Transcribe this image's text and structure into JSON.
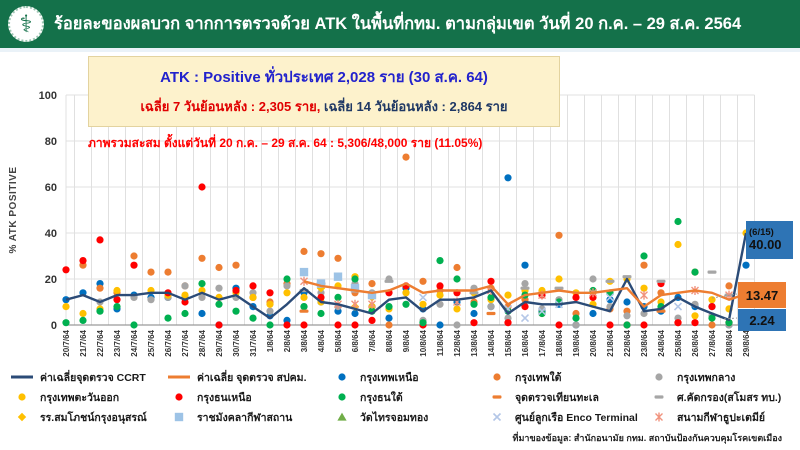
{
  "header": {
    "title": "ร้อยละของผลบวก จากการตรวจด้วย ATK ในพื้นที่กทม. ตามกลุ่มเขต วันที่ 20 ก.ค. – 29 ส.ค. 2564",
    "logo_icon": "moph-seal-icon",
    "logo_glyph": "⚕",
    "bg_color": "#14714a"
  },
  "info_box": {
    "line1": "ATK : Positive ทั่วประเทศ 2,028 ราย (30 ส.ค. 64)",
    "line2_red": "เฉลี่ย 7 วันย้อนหลัง : 2,305 ราย,",
    "line2_dark": " เฉลี่ย 14 วันย้อนหลัง : 2,864 ราย",
    "bg_color": "#fdf2cc"
  },
  "cumulative_note": "ภาพรวมสะสม ตั้งแต่วันที่ 20 ก.ค. – 29 ส.ค. 64 : 5,306/48,000 ราย (11.05%)",
  "source_note": "ที่มาของข้อมูล: สำนักอนามัย กทม. สถาบันป้องกันควบคุมโรคเขตเมือง",
  "chart_data": {
    "type": "scatter",
    "ylabel": "% ATK POSITIVE",
    "ylim": [
      0,
      100
    ],
    "yticks": [
      0,
      20,
      40,
      60,
      80,
      100
    ],
    "grid": true,
    "legend_position": "bottom",
    "categories": [
      "20/7/64",
      "21/7/64",
      "22/7/64",
      "23/7/64",
      "24/7/64",
      "25/7/64",
      "26/7/64",
      "27/7/64",
      "28/7/64",
      "29/7/64",
      "30/7/64",
      "31/7/64",
      "1/8/64",
      "2/8/64",
      "3/8/64",
      "4/8/64",
      "5/8/64",
      "6/8/64",
      "7/8/64",
      "8/8/64",
      "9/8/64",
      "10/8/64",
      "11/8/64",
      "12/8/64",
      "13/8/64",
      "14/8/64",
      "15/8/64",
      "16/8/64",
      "17/8/64",
      "18/8/64",
      "19/8/64",
      "20/8/64",
      "21/8/64",
      "22/8/64",
      "23/8/64",
      "24/8/64",
      "25/8/64",
      "26/8/64",
      "27/8/64",
      "28/8/64",
      "29/8/64"
    ],
    "series": [
      {
        "name": "ค่าเฉลี่ยจุดตรวจ CCRT",
        "marker": "line",
        "color": "#2b4b77",
        "values": [
          11,
          13,
          10,
          13,
          13,
          14,
          14,
          11,
          14,
          11,
          13,
          8,
          3,
          9,
          16,
          10,
          9,
          7,
          5,
          11,
          12,
          6,
          11,
          11,
          12,
          15,
          5,
          10,
          9,
          9,
          10,
          8,
          6,
          20,
          6,
          7,
          12,
          8,
          5,
          2.24,
          40
        ]
      },
      {
        "name": "ค่าเฉลี่ย จุดตรวจ สปคม.",
        "marker": "line",
        "color": "#ed7d31",
        "values": [
          null,
          null,
          null,
          null,
          null,
          null,
          null,
          null,
          null,
          null,
          null,
          null,
          null,
          null,
          19,
          17,
          16,
          15,
          14,
          15,
          18,
          14,
          15,
          15,
          15,
          17,
          9,
          13,
          14,
          15,
          14,
          14,
          15,
          16,
          8,
          13,
          14,
          15,
          14,
          11,
          13.47
        ]
      },
      {
        "name": "กรุงเทพเหนือ",
        "marker": "dot",
        "color": "#0070c0",
        "values": [
          11,
          14,
          18,
          7,
          13,
          12,
          12,
          12,
          5,
          0,
          16,
          8,
          4,
          2,
          14,
          10,
          6,
          5,
          8,
          3,
          16,
          7,
          0,
          10,
          5,
          8,
          64,
          26,
          6,
          9,
          0,
          5,
          11,
          10,
          8,
          6,
          12,
          8,
          8,
          0,
          26
        ]
      },
      {
        "name": "กรุงเทพใต้",
        "marker": "dot",
        "color": "#ed7d31",
        "values": [
          null,
          26,
          16,
          14,
          30,
          23,
          23,
          17,
          29,
          25,
          26,
          12,
          10,
          18,
          32,
          31,
          29,
          14,
          18,
          0,
          73,
          19,
          15,
          25,
          10,
          16,
          8,
          11,
          5,
          39,
          5,
          14,
          7,
          6,
          26,
          14,
          1,
          23,
          0,
          17,
          null
        ]
      },
      {
        "name": "กรุงเทพกลาง",
        "marker": "dot",
        "color": "#a6a6a6",
        "values": [
          null,
          null,
          10,
          null,
          12,
          11,
          12,
          17,
          12,
          16,
          12,
          14,
          6,
          17,
          8,
          14,
          8,
          18,
          14,
          20,
          14,
          2,
          9,
          0,
          16,
          8,
          3,
          18,
          7,
          11,
          0,
          20,
          8,
          4,
          5,
          7,
          3,
          9,
          4,
          0,
          null
        ]
      },
      {
        "name": "กรุงเทพตะวันออก",
        "marker": "dot",
        "color": "#ffc000",
        "values": [
          8,
          5,
          7,
          15,
          null,
          15,
          13,
          13,
          15,
          12,
          14,
          12,
          9,
          14,
          12,
          10,
          17,
          21,
          8,
          7,
          14,
          9,
          13,
          7,
          14,
          11,
          13,
          15,
          15,
          20,
          14,
          9,
          19,
          20,
          16,
          10,
          35,
          4,
          11,
          7,
          40
        ]
      },
      {
        "name": "กรุงธนเหนือ",
        "marker": "dot",
        "color": "#ff0000",
        "values": [
          24,
          28,
          37,
          11,
          26,
          null,
          14,
          10,
          60,
          0,
          15,
          17,
          14,
          0,
          0,
          12,
          0,
          0,
          2,
          14,
          17,
          0,
          17,
          14,
          1,
          19,
          1,
          8,
          13,
          0,
          12,
          12,
          0,
          0,
          0,
          18,
          1,
          1,
          8,
          1,
          null
        ]
      },
      {
        "name": "กรุงธนใต้",
        "marker": "dot",
        "color": "#00b050",
        "values": [
          1,
          2,
          6,
          8,
          0,
          null,
          3,
          5,
          18,
          9,
          6,
          3,
          0,
          20,
          8,
          5,
          12,
          20,
          6,
          8,
          9,
          1,
          28,
          20,
          9,
          12,
          6,
          13,
          5,
          10,
          3,
          15,
          14,
          0,
          30,
          8,
          45,
          23,
          3,
          1,
          3
        ]
      },
      {
        "name": "จุดตรวจเทียนทะเล",
        "marker": "dash",
        "color": "#ed7d31",
        "values": [
          null,
          null,
          null,
          null,
          null,
          null,
          null,
          null,
          null,
          null,
          null,
          null,
          null,
          null,
          6,
          null,
          null,
          null,
          null,
          null,
          null,
          null,
          null,
          null,
          null,
          5,
          null,
          null,
          null,
          null,
          null,
          null,
          null,
          null,
          null,
          6,
          null,
          null,
          null,
          null,
          null
        ]
      },
      {
        "name": "ศ.คัดกรอง(สโมสร ทบ.)",
        "marker": "dash",
        "color": "#a6a6a6",
        "values": [
          null,
          null,
          null,
          null,
          null,
          null,
          null,
          null,
          null,
          null,
          null,
          null,
          null,
          null,
          15,
          18,
          null,
          null,
          null,
          19,
          null,
          null,
          null,
          null,
          14,
          null,
          null,
          16,
          null,
          16,
          null,
          null,
          19,
          21,
          null,
          19,
          null,
          null,
          23,
          13,
          null
        ]
      },
      {
        "name": "รร.สมโภชน์กรุงอนุสรณ์",
        "marker": "diamond",
        "color": "#ffc000",
        "values": [
          null,
          null,
          null,
          null,
          null,
          null,
          null,
          null,
          null,
          null,
          null,
          null,
          null,
          null,
          null,
          16,
          null,
          8,
          12,
          null,
          null,
          null,
          null,
          null,
          null,
          null,
          null,
          null,
          null,
          null,
          null,
          null,
          null,
          null,
          null,
          null,
          null,
          null,
          null,
          null,
          null
        ]
      },
      {
        "name": "ราชมังคลากีฬาสถาน",
        "marker": "square",
        "color": "#9dc3e6",
        "values": [
          null,
          null,
          null,
          null,
          null,
          null,
          null,
          null,
          null,
          null,
          null,
          null,
          null,
          null,
          23,
          18,
          21,
          16,
          13,
          null,
          null,
          null,
          null,
          null,
          null,
          null,
          null,
          null,
          null,
          null,
          null,
          null,
          null,
          null,
          null,
          null,
          null,
          null,
          null,
          null,
          null
        ]
      },
      {
        "name": "วัดไทรจอมทอง",
        "marker": "triangle",
        "color": "#70ad47",
        "values": [
          null,
          null,
          null,
          null,
          null,
          null,
          null,
          null,
          null,
          null,
          null,
          null,
          null,
          null,
          null,
          null,
          null,
          null,
          null,
          null,
          null,
          null,
          null,
          null,
          null,
          null,
          null,
          null,
          null,
          null,
          null,
          null,
          null,
          null,
          null,
          null,
          null,
          null,
          null,
          null,
          null
        ]
      },
      {
        "name": "ศูนย์ลูกเรือ Enco Terminal",
        "marker": "x",
        "color": "#b4c7e7",
        "values": [
          null,
          null,
          null,
          null,
          null,
          null,
          null,
          null,
          null,
          null,
          null,
          null,
          null,
          null,
          null,
          null,
          null,
          null,
          null,
          null,
          null,
          12,
          null,
          null,
          null,
          null,
          7,
          3,
          6,
          9,
          null,
          null,
          12,
          null,
          null,
          null,
          8,
          null,
          null,
          null,
          2
        ]
      },
      {
        "name": "สนามกีฬาธูปะเตมีย์",
        "marker": "xstar",
        "color": "#f1937e",
        "values": [
          null,
          null,
          null,
          null,
          null,
          null,
          null,
          null,
          null,
          null,
          null,
          null,
          null,
          null,
          19,
          null,
          9,
          9,
          9,
          null,
          null,
          null,
          null,
          10,
          null,
          15,
          null,
          null,
          13,
          null,
          null,
          14,
          null,
          null,
          13,
          null,
          null,
          15,
          null,
          13,
          null
        ]
      }
    ],
    "callouts": {
      "ccrt_last_note": "(6/15)",
      "ccrt_last_value": "40.00",
      "spkm_last_value": "13.47",
      "ccrt_prev_value": "2.24"
    }
  }
}
